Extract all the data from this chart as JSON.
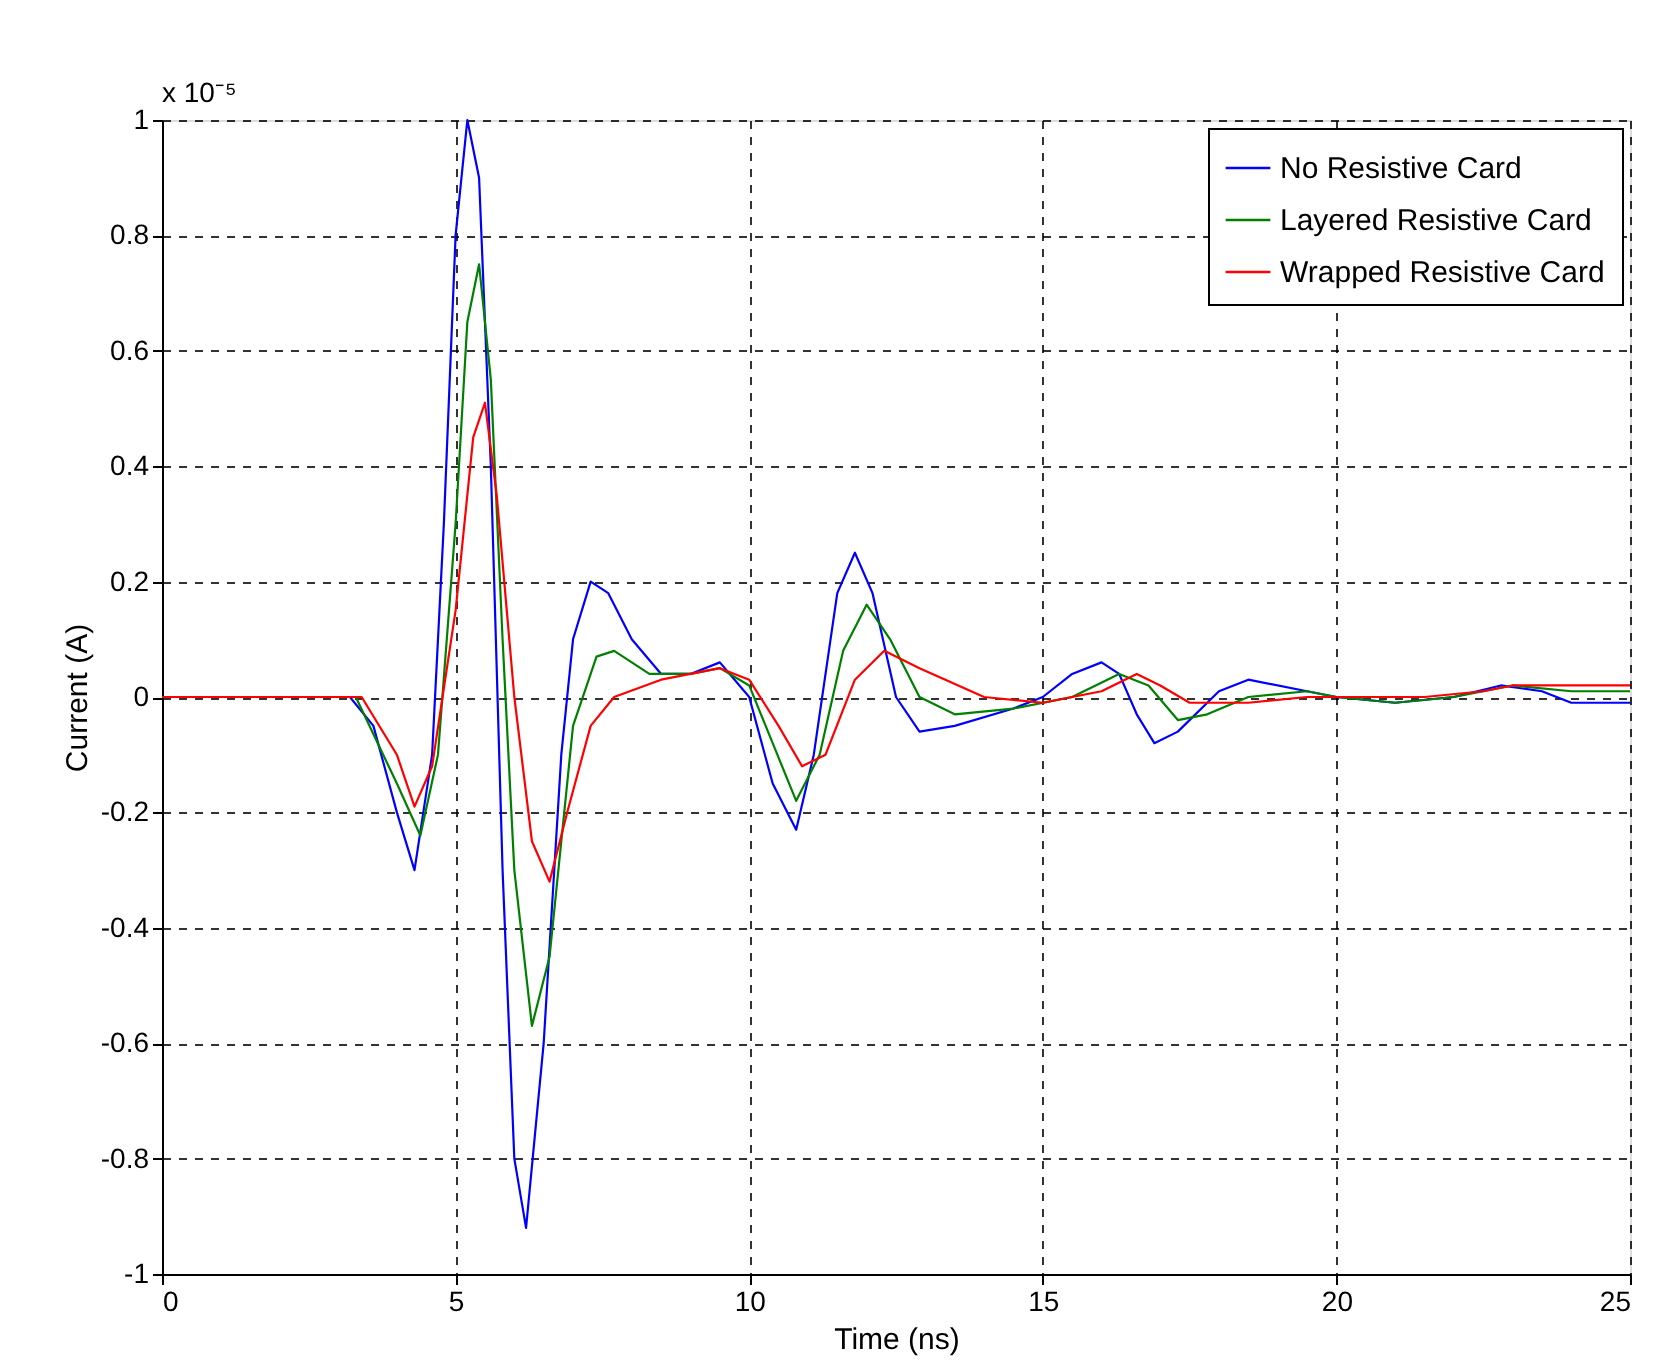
{
  "chart_data": {
    "type": "line",
    "xlabel": "Time (ns)",
    "ylabel": "Current (A)",
    "annotations": [
      "x 10⁻⁵"
    ],
    "xlim": [
      0,
      25
    ],
    "xticks": [
      0,
      5,
      10,
      15,
      20,
      25
    ],
    "ylim": [
      -1,
      1
    ],
    "yticks": [
      -1,
      -0.8,
      -0.6,
      -0.4,
      -0.2,
      0,
      0.2,
      0.4,
      0.6,
      0.8,
      1
    ],
    "grid": true,
    "legend": "top right",
    "line_style": "solid",
    "marker": "none",
    "series": [
      {
        "name": "No Resistive Card",
        "color": "#0000ff",
        "x": [
          0,
          3.2,
          3.6,
          4.0,
          4.3,
          4.6,
          4.8,
          5.0,
          5.2,
          5.4,
          5.6,
          5.8,
          6.0,
          6.2,
          6.5,
          6.8,
          7.0,
          7.3,
          7.6,
          8.0,
          8.5,
          9.0,
          9.5,
          10.0,
          10.4,
          10.8,
          11.1,
          11.5,
          11.8,
          12.1,
          12.5,
          12.9,
          13.5,
          14.5,
          15.0,
          15.5,
          16.0,
          16.3,
          16.6,
          16.9,
          17.3,
          18,
          18.5,
          19.5,
          20,
          21,
          22,
          22.8,
          23.5,
          24,
          25
        ],
        "values": [
          0,
          0,
          -0.05,
          -0.2,
          -0.3,
          -0.1,
          0.3,
          0.8,
          1.0,
          0.9,
          0.4,
          -0.3,
          -0.8,
          -0.92,
          -0.6,
          -0.1,
          0.1,
          0.2,
          0.18,
          0.1,
          0.04,
          0.04,
          0.06,
          0.0,
          -0.15,
          -0.23,
          -0.1,
          0.18,
          0.25,
          0.18,
          0.0,
          -0.06,
          -0.05,
          -0.02,
          0.0,
          0.04,
          0.06,
          0.04,
          -0.03,
          -0.08,
          -0.06,
          0.01,
          0.03,
          0.01,
          0.0,
          -0.01,
          0.0,
          0.02,
          0.01,
          -0.01,
          -0.01
        ]
      },
      {
        "name": "Layered Resistive Card",
        "color": "#008000",
        "x": [
          0,
          3.3,
          4.0,
          4.4,
          4.7,
          5.0,
          5.2,
          5.4,
          5.6,
          5.8,
          6.0,
          6.3,
          6.6,
          7.0,
          7.4,
          7.7,
          8.3,
          9,
          9.5,
          10,
          10.4,
          10.8,
          11.2,
          11.6,
          12.0,
          12.4,
          12.9,
          13.5,
          14.5,
          15.5,
          16.3,
          16.8,
          17.3,
          17.8,
          18.5,
          19.5,
          20,
          21,
          22,
          23,
          24,
          25
        ],
        "values": [
          0,
          0,
          -0.15,
          -0.24,
          -0.1,
          0.3,
          0.65,
          0.75,
          0.55,
          0.1,
          -0.3,
          -0.57,
          -0.45,
          -0.05,
          0.07,
          0.08,
          0.04,
          0.04,
          0.05,
          0.02,
          -0.08,
          -0.18,
          -0.1,
          0.08,
          0.16,
          0.1,
          0.0,
          -0.03,
          -0.02,
          0.0,
          0.04,
          0.02,
          -0.04,
          -0.03,
          0.0,
          0.01,
          0.0,
          -0.01,
          0.0,
          0.02,
          0.01,
          0.01
        ]
      },
      {
        "name": "Wrapped Resistive Card",
        "color": "#ff0000",
        "x": [
          0,
          3.4,
          4.0,
          4.3,
          4.6,
          5.0,
          5.3,
          5.5,
          5.7,
          6.0,
          6.3,
          6.6,
          6.9,
          7.3,
          7.7,
          8.5,
          9.5,
          10,
          10.5,
          10.9,
          11.3,
          11.8,
          12.3,
          12.9,
          14,
          15,
          16,
          16.6,
          17,
          17.5,
          18.5,
          19.5,
          20.5,
          21.5,
          22.5,
          23,
          25
        ],
        "values": [
          0,
          0,
          -0.1,
          -0.19,
          -0.12,
          0.15,
          0.45,
          0.51,
          0.35,
          0.0,
          -0.25,
          -0.32,
          -0.2,
          -0.05,
          0.0,
          0.03,
          0.05,
          0.03,
          -0.05,
          -0.12,
          -0.1,
          0.03,
          0.08,
          0.05,
          0.0,
          -0.01,
          0.01,
          0.04,
          0.02,
          -0.01,
          -0.01,
          0.0,
          0.0,
          0.0,
          0.01,
          0.02,
          0.02
        ]
      }
    ]
  }
}
